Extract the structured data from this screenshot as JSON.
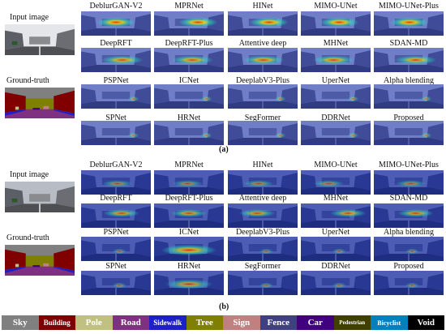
{
  "figure": {
    "panels": [
      {
        "caption": "(a)",
        "input_label": "Input image",
        "gt_label": "Ground-truth",
        "methods": [
          [
            "DeblurGAN-V2",
            "MPRNet",
            "HINet",
            "MIMO-UNet",
            "MIMO-UNet-Plus"
          ],
          [
            "DeepRFT",
            "DeepRFT-Plus",
            "Attentive deep",
            "MHNet",
            "SDAN-MD"
          ],
          [
            "PSPNet",
            "ICNet",
            "DeeplabV3-Plus",
            "UperNet",
            "Alpha blending"
          ],
          [
            "SPNet",
            "HRNet",
            "SegFormer",
            "DDRNet",
            "Proposed"
          ]
        ]
      },
      {
        "caption": "(b)",
        "input_label": "Input image",
        "gt_label": "Ground-truth",
        "methods": [
          [
            "DeblurGAN-V2",
            "MPRNet",
            "HINet",
            "MIMO-UNet",
            "MIMO-UNet-Plus"
          ],
          [
            "DeepRFT",
            "DeepRFT-Plus",
            "Attentive deep",
            "MHNet",
            "SDAN-MD"
          ],
          [
            "PSPNet",
            "ICNet",
            "DeeplabV3-Plus",
            "UperNet",
            "Alpha blending"
          ],
          [
            "SPNet",
            "HRNet",
            "SegFormer",
            "DDRNet",
            "Proposed"
          ]
        ]
      }
    ],
    "legend": [
      {
        "label": "Sky",
        "color": "#808080",
        "text_color": "#ffffff"
      },
      {
        "label": "Building",
        "color": "#800000",
        "text_color": "#ffffff"
      },
      {
        "label": "Pole",
        "color": "#c0c080",
        "text_color": "#ffffff"
      },
      {
        "label": "Road",
        "color": "#803080",
        "text_color": "#ffffff"
      },
      {
        "label": "Sidewalk",
        "color": "#1f1fc8",
        "text_color": "#ffffff"
      },
      {
        "label": "Tree",
        "color": "#808000",
        "text_color": "#ffffff"
      },
      {
        "label": "Sign",
        "color": "#c08080",
        "text_color": "#ffffff"
      },
      {
        "label": "Fence",
        "color": "#404080",
        "text_color": "#ffffff"
      },
      {
        "label": "Car",
        "color": "#400080",
        "text_color": "#ffffff"
      },
      {
        "label": "Pedestrian",
        "color": "#404000",
        "text_color": "#ffffff"
      },
      {
        "label": "Bicyclist",
        "color": "#0080c0",
        "text_color": "#ffffff"
      },
      {
        "label": "Void",
        "color": "#000000",
        "text_color": "#ffffff"
      }
    ]
  }
}
